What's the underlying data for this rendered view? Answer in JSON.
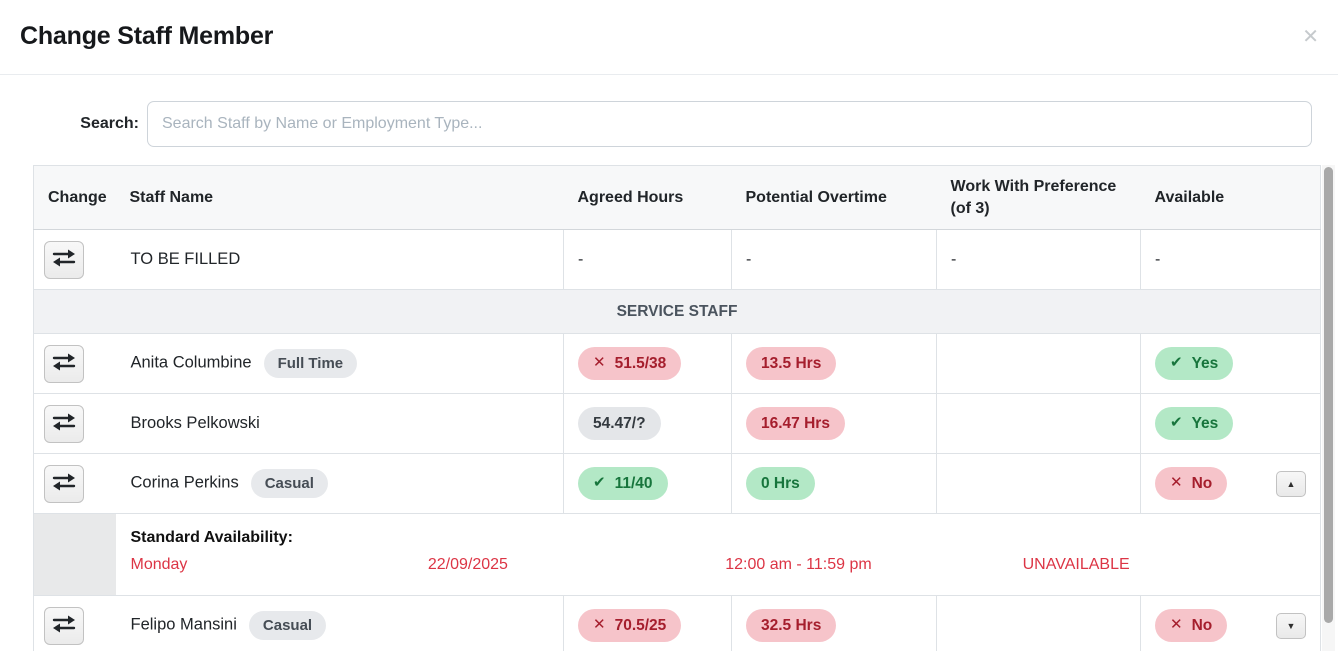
{
  "modal": {
    "title": "Change Staff Member",
    "close_icon": "✕"
  },
  "search": {
    "label": "Search:",
    "placeholder": "Search Staff by Name or Employment Type..."
  },
  "icons": {
    "x": "✕",
    "check": "✔",
    "collapse": "▲",
    "expand": "▼"
  },
  "colors": {
    "danger_bg": "#f6c4ca",
    "danger_text": "#a51e2d",
    "success_bg": "#b3e8c6",
    "success_text": "#17753c",
    "neutral_bg": "#e4e6e9",
    "neutral_text": "#343a40",
    "unavailable_text": "#dc3545"
  },
  "table": {
    "columns": [
      "Change",
      "Staff Name",
      "Agreed Hours",
      "Potential Overtime",
      "Work With Preference (of 3)",
      "Available"
    ],
    "rows": [
      {
        "type": "staff",
        "name": "TO BE FILLED",
        "employment": null,
        "agreed": {
          "text": "-"
        },
        "overtime": {
          "text": "-"
        },
        "preference": "-",
        "available": {
          "text": "-"
        },
        "toggle": null
      },
      {
        "type": "section",
        "label": "SERVICE STAFF"
      },
      {
        "type": "staff",
        "name": "Anita Columbine",
        "employment": "Full Time",
        "agreed": {
          "text": "51.5/38",
          "variant": "red",
          "icon": "x"
        },
        "overtime": {
          "text": "13.5 Hrs",
          "variant": "red"
        },
        "preference": "",
        "available": {
          "text": "Yes",
          "variant": "green",
          "icon": "check"
        },
        "toggle": null
      },
      {
        "type": "staff",
        "name": "Brooks Pelkowski",
        "employment": null,
        "agreed": {
          "text": "54.47/?",
          "variant": "gray"
        },
        "overtime": {
          "text": "16.47 Hrs",
          "variant": "red"
        },
        "preference": "",
        "available": {
          "text": "Yes",
          "variant": "green",
          "icon": "check"
        },
        "toggle": null
      },
      {
        "type": "staff",
        "name": "Corina Perkins",
        "employment": "Casual",
        "agreed": {
          "text": "11/40",
          "variant": "green",
          "icon": "check"
        },
        "overtime": {
          "text": "0 Hrs",
          "variant": "green"
        },
        "preference": "",
        "available": {
          "text": "No",
          "variant": "red",
          "icon": "x"
        },
        "toggle": "up"
      },
      {
        "type": "availability",
        "heading": "Standard Availability:",
        "entries": [
          {
            "day": "Monday",
            "date": "22/09/2025",
            "time": "12:00 am - 11:59 pm",
            "status": "UNAVAILABLE"
          }
        ]
      },
      {
        "type": "staff",
        "name": "Felipo Mansini",
        "employment": "Casual",
        "agreed": {
          "text": "70.5/25",
          "variant": "red",
          "icon": "x"
        },
        "overtime": {
          "text": "32.5 Hrs",
          "variant": "red"
        },
        "preference": "",
        "available": {
          "text": "No",
          "variant": "red",
          "icon": "x"
        },
        "toggle": "down"
      }
    ]
  }
}
